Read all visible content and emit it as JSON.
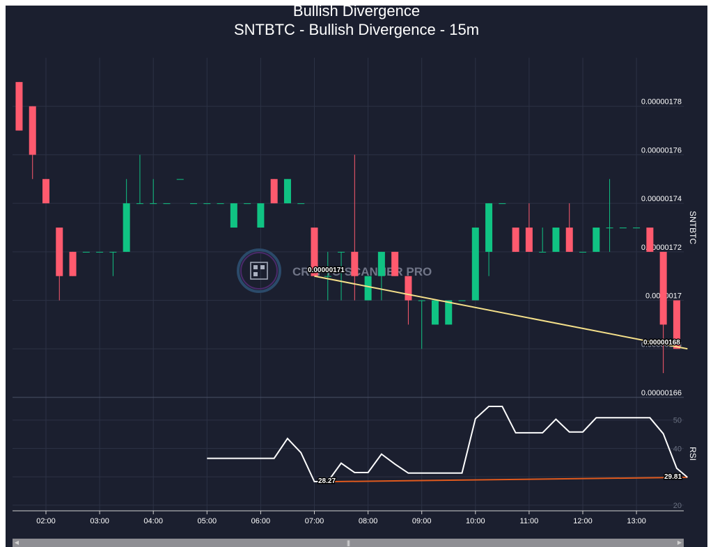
{
  "chart_data": {
    "type": "candlestick",
    "title": "Bullish Divergence",
    "subtitle": "SNTBTC - Bullish Divergence - 15m",
    "price_axis_label": "SNTBTC",
    "rsi_axis_label": "RSI",
    "watermark": "CRYPTO SCANNER PRO",
    "x_ticks": [
      "02:00",
      "03:00",
      "04:00",
      "05:00",
      "06:00",
      "07:00",
      "08:00",
      "09:00",
      "10:00",
      "11:00",
      "12:00",
      "13:00"
    ],
    "x_tick_hours": [
      2,
      3,
      4,
      5,
      6,
      7,
      8,
      9,
      10,
      11,
      12,
      13
    ],
    "price_ticks": [
      {
        "v": 1.78,
        "label": "0.00000178"
      },
      {
        "v": 1.76,
        "label": "0.00000176"
      },
      {
        "v": 1.74,
        "label": "0.00000174"
      },
      {
        "v": 1.72,
        "label": "0.00000172"
      },
      {
        "v": 1.7,
        "label": "0.0000017"
      },
      {
        "v": 1.66,
        "label": "0.00000166"
      }
    ],
    "price_unit": "1e-6 BTC",
    "price_range": [
      1.66,
      1.8
    ],
    "rsi_ticks": [
      {
        "v": 50,
        "label": "50"
      },
      {
        "v": 40,
        "label": "40"
      },
      {
        "v": 20,
        "label": "20"
      }
    ],
    "rsi_range": [
      18,
      58
    ],
    "colors": {
      "up": "#10c383",
      "down": "#ff5a6e",
      "divergence_price": "#f5e08a",
      "divergence_rsi": "#e05a1e",
      "rsi": "#ffffff"
    },
    "candles": [
      {
        "t": 1.5,
        "o": 1.79,
        "h": 1.79,
        "l": 1.77,
        "c": 1.77
      },
      {
        "t": 1.75,
        "o": 1.78,
        "h": 1.78,
        "l": 1.75,
        "c": 1.76
      },
      {
        "t": 2.0,
        "o": 1.75,
        "h": 1.75,
        "l": 1.74,
        "c": 1.74
      },
      {
        "t": 2.25,
        "o": 1.73,
        "h": 1.73,
        "l": 1.7,
        "c": 1.71
      },
      {
        "t": 2.5,
        "o": 1.72,
        "h": 1.72,
        "l": 1.71,
        "c": 1.71
      },
      {
        "t": 2.75,
        "o": 1.72,
        "h": 1.72,
        "l": 1.72,
        "c": 1.72
      },
      {
        "t": 3.0,
        "o": 1.72,
        "h": 1.72,
        "l": 1.72,
        "c": 1.72
      },
      {
        "t": 3.25,
        "o": 1.72,
        "h": 1.72,
        "l": 1.71,
        "c": 1.72
      },
      {
        "t": 3.5,
        "o": 1.72,
        "h": 1.75,
        "l": 1.72,
        "c": 1.74
      },
      {
        "t": 3.75,
        "o": 1.74,
        "h": 1.76,
        "l": 1.74,
        "c": 1.74
      },
      {
        "t": 4.0,
        "o": 1.74,
        "h": 1.75,
        "l": 1.74,
        "c": 1.74
      },
      {
        "t": 4.25,
        "o": 1.74,
        "h": 1.74,
        "l": 1.74,
        "c": 1.74
      },
      {
        "t": 4.5,
        "o": 1.75,
        "h": 1.75,
        "l": 1.75,
        "c": 1.75
      },
      {
        "t": 4.75,
        "o": 1.74,
        "h": 1.74,
        "l": 1.74,
        "c": 1.74
      },
      {
        "t": 5.0,
        "o": 1.74,
        "h": 1.74,
        "l": 1.74,
        "c": 1.74
      },
      {
        "t": 5.25,
        "o": 1.74,
        "h": 1.74,
        "l": 1.74,
        "c": 1.74
      },
      {
        "t": 5.5,
        "o": 1.73,
        "h": 1.74,
        "l": 1.73,
        "c": 1.74
      },
      {
        "t": 5.75,
        "o": 1.74,
        "h": 1.74,
        "l": 1.74,
        "c": 1.74
      },
      {
        "t": 6.0,
        "o": 1.73,
        "h": 1.74,
        "l": 1.73,
        "c": 1.74
      },
      {
        "t": 6.25,
        "o": 1.75,
        "h": 1.75,
        "l": 1.74,
        "c": 1.74
      },
      {
        "t": 6.5,
        "o": 1.74,
        "h": 1.75,
        "l": 1.74,
        "c": 1.75
      },
      {
        "t": 6.75,
        "o": 1.74,
        "h": 1.74,
        "l": 1.74,
        "c": 1.74
      },
      {
        "t": 7.0,
        "o": 1.73,
        "h": 1.73,
        "l": 1.71,
        "c": 1.71
      },
      {
        "t": 7.25,
        "o": 1.71,
        "h": 1.72,
        "l": 1.7,
        "c": 1.71
      },
      {
        "t": 7.5,
        "o": 1.72,
        "h": 1.72,
        "l": 1.7,
        "c": 1.72
      },
      {
        "t": 7.75,
        "o": 1.72,
        "h": 1.76,
        "l": 1.7,
        "c": 1.71
      },
      {
        "t": 8.0,
        "o": 1.7,
        "h": 1.71,
        "l": 1.7,
        "c": 1.71
      },
      {
        "t": 8.25,
        "o": 1.71,
        "h": 1.72,
        "l": 1.7,
        "c": 1.72
      },
      {
        "t": 8.5,
        "o": 1.72,
        "h": 1.72,
        "l": 1.71,
        "c": 1.71
      },
      {
        "t": 8.75,
        "o": 1.71,
        "h": 1.71,
        "l": 1.69,
        "c": 1.7
      },
      {
        "t": 9.0,
        "o": 1.7,
        "h": 1.7,
        "l": 1.68,
        "c": 1.7
      },
      {
        "t": 9.25,
        "o": 1.69,
        "h": 1.7,
        "l": 1.69,
        "c": 1.7
      },
      {
        "t": 9.5,
        "o": 1.69,
        "h": 1.7,
        "l": 1.69,
        "c": 1.7
      },
      {
        "t": 9.75,
        "o": 1.7,
        "h": 1.7,
        "l": 1.7,
        "c": 1.7
      },
      {
        "t": 10.0,
        "o": 1.7,
        "h": 1.73,
        "l": 1.7,
        "c": 1.73
      },
      {
        "t": 10.25,
        "o": 1.72,
        "h": 1.74,
        "l": 1.71,
        "c": 1.74
      },
      {
        "t": 10.5,
        "o": 1.74,
        "h": 1.74,
        "l": 1.74,
        "c": 1.74
      },
      {
        "t": 10.75,
        "o": 1.73,
        "h": 1.73,
        "l": 1.72,
        "c": 1.72
      },
      {
        "t": 11.0,
        "o": 1.73,
        "h": 1.74,
        "l": 1.72,
        "c": 1.72
      },
      {
        "t": 11.25,
        "o": 1.72,
        "h": 1.73,
        "l": 1.72,
        "c": 1.72
      },
      {
        "t": 11.5,
        "o": 1.72,
        "h": 1.73,
        "l": 1.72,
        "c": 1.73
      },
      {
        "t": 11.75,
        "o": 1.73,
        "h": 1.74,
        "l": 1.72,
        "c": 1.72
      },
      {
        "t": 12.0,
        "o": 1.72,
        "h": 1.72,
        "l": 1.72,
        "c": 1.72
      },
      {
        "t": 12.25,
        "o": 1.72,
        "h": 1.73,
        "l": 1.72,
        "c": 1.73
      },
      {
        "t": 12.5,
        "o": 1.73,
        "h": 1.75,
        "l": 1.72,
        "c": 1.73
      },
      {
        "t": 12.75,
        "o": 1.73,
        "h": 1.73,
        "l": 1.73,
        "c": 1.73
      },
      {
        "t": 13.0,
        "o": 1.73,
        "h": 1.73,
        "l": 1.73,
        "c": 1.73
      },
      {
        "t": 13.25,
        "o": 1.73,
        "h": 1.73,
        "l": 1.72,
        "c": 1.72
      },
      {
        "t": 13.5,
        "o": 1.72,
        "h": 1.72,
        "l": 1.67,
        "c": 1.69
      },
      {
        "t": 13.75,
        "o": 1.7,
        "h": 1.7,
        "l": 1.68,
        "c": 1.68
      }
    ],
    "rsi": [
      {
        "t": 5.0,
        "v": 36.5
      },
      {
        "t": 5.25,
        "v": 36.5
      },
      {
        "t": 5.5,
        "v": 36.5
      },
      {
        "t": 5.75,
        "v": 36.5
      },
      {
        "t": 6.0,
        "v": 36.5
      },
      {
        "t": 6.25,
        "v": 36.5
      },
      {
        "t": 6.5,
        "v": 43.5
      },
      {
        "t": 6.75,
        "v": 38.5
      },
      {
        "t": 7.0,
        "v": 28.3
      },
      {
        "t": 7.25,
        "v": 28.3
      },
      {
        "t": 7.5,
        "v": 34.8
      },
      {
        "t": 7.75,
        "v": 31.5
      },
      {
        "t": 8.0,
        "v": 31.5
      },
      {
        "t": 8.25,
        "v": 38.0
      },
      {
        "t": 8.5,
        "v": 34.5
      },
      {
        "t": 8.75,
        "v": 31.3
      },
      {
        "t": 9.0,
        "v": 31.3
      },
      {
        "t": 9.25,
        "v": 31.3
      },
      {
        "t": 9.5,
        "v": 31.3
      },
      {
        "t": 9.75,
        "v": 31.3
      },
      {
        "t": 10.0,
        "v": 50.5
      },
      {
        "t": 10.25,
        "v": 54.8
      },
      {
        "t": 10.5,
        "v": 54.8
      },
      {
        "t": 10.75,
        "v": 45.5
      },
      {
        "t": 11.0,
        "v": 45.5
      },
      {
        "t": 11.25,
        "v": 45.5
      },
      {
        "t": 11.5,
        "v": 50.3
      },
      {
        "t": 11.75,
        "v": 45.8
      },
      {
        "t": 12.0,
        "v": 45.8
      },
      {
        "t": 12.25,
        "v": 50.8
      },
      {
        "t": 12.5,
        "v": 50.8
      },
      {
        "t": 12.75,
        "v": 50.8
      },
      {
        "t": 13.0,
        "v": 50.8
      },
      {
        "t": 13.25,
        "v": 50.8
      },
      {
        "t": 13.5,
        "v": 45.2
      },
      {
        "t": 13.75,
        "v": 33.0
      },
      {
        "t": 13.95,
        "v": 29.8
      }
    ],
    "price_divergence": {
      "from": {
        "t": 7.0,
        "v": 1.71
      },
      "to": {
        "t": 13.95,
        "v": 1.68
      },
      "from_label": "0.00000171",
      "to_label": "0.00000168"
    },
    "rsi_divergence": {
      "from": {
        "t": 7.25,
        "v": 28.27
      },
      "to": {
        "t": 13.95,
        "v": 29.81
      },
      "from_label": "28.27",
      "to_label": "29.81"
    },
    "overlapping_price_label": "0.00000168",
    "grid": true
  }
}
